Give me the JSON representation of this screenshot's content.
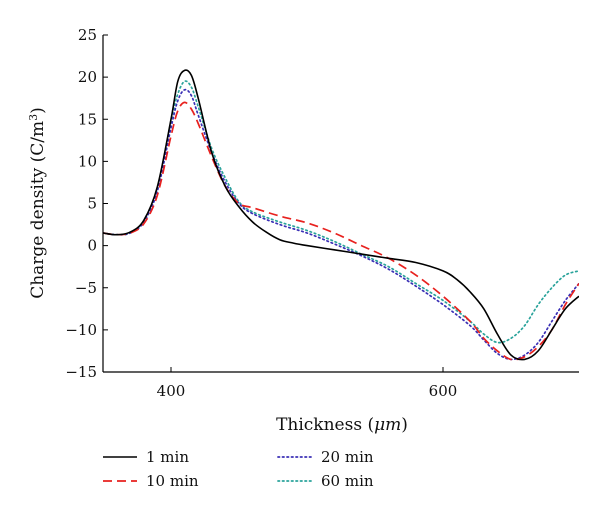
{
  "chart_data": {
    "type": "line",
    "xlabel": "Thickness (μm)",
    "xlabel_main": "Thickness (",
    "xlabel_unit": "μm",
    "xlabel_close": ")",
    "ylabel": "Charge density (C/m³)",
    "ylabel_main": "Charge density (C/m",
    "ylabel_sup": "3",
    "ylabel_close": ")",
    "xlim": [
      350,
      700
    ],
    "ylim": [
      -15,
      25
    ],
    "xticks": [
      400,
      600
    ],
    "yticks": [
      -15,
      -10,
      -5,
      0,
      5,
      10,
      15,
      20,
      25
    ],
    "grid": false,
    "legend_position": "bottom",
    "series": [
      {
        "name": "1 min",
        "color": "#000000",
        "dash": "solid",
        "x": [
          350,
          360,
          370,
          380,
          390,
          400,
          405,
          410,
          415,
          420,
          430,
          440,
          450,
          460,
          470,
          480,
          490,
          500,
          520,
          540,
          560,
          580,
          600,
          610,
          620,
          630,
          640,
          650,
          660,
          670,
          680,
          690,
          700
        ],
        "y": [
          1.5,
          1.3,
          1.6,
          3.0,
          7.0,
          15.0,
          19.5,
          20.8,
          20.2,
          17.5,
          11.0,
          7.0,
          4.6,
          2.8,
          1.6,
          0.7,
          0.3,
          0.0,
          -0.5,
          -1.0,
          -1.5,
          -2.0,
          -3.0,
          -4.0,
          -5.5,
          -7.5,
          -10.5,
          -13.0,
          -13.5,
          -12.5,
          -10.0,
          -7.5,
          -6.0
        ]
      },
      {
        "name": "10 min",
        "color": "#e8211e",
        "dash": "dashed",
        "x": [
          350,
          360,
          370,
          380,
          390,
          400,
          405,
          410,
          415,
          420,
          430,
          440,
          450,
          460,
          480,
          500,
          520,
          540,
          560,
          580,
          600,
          620,
          630,
          640,
          650,
          660,
          670,
          680,
          690,
          700
        ],
        "y": [
          1.5,
          1.3,
          1.5,
          2.6,
          6.0,
          13.0,
          16.0,
          17.0,
          16.2,
          14.5,
          10.5,
          7.0,
          5.0,
          4.5,
          3.5,
          2.7,
          1.5,
          0.0,
          -1.5,
          -3.5,
          -6.0,
          -9.0,
          -11.0,
          -12.5,
          -13.5,
          -13.2,
          -12.0,
          -10.0,
          -7.0,
          -4.5
        ]
      },
      {
        "name": "20 min",
        "color": "#3a2fb5",
        "dash": "dotted",
        "x": [
          350,
          360,
          370,
          380,
          390,
          400,
          405,
          410,
          415,
          420,
          430,
          440,
          450,
          460,
          480,
          500,
          520,
          540,
          560,
          580,
          600,
          620,
          630,
          640,
          650,
          660,
          670,
          680,
          690,
          700
        ],
        "y": [
          1.5,
          1.3,
          1.5,
          2.8,
          6.5,
          14.0,
          17.2,
          18.5,
          17.8,
          15.5,
          11.0,
          7.5,
          5.0,
          3.8,
          2.5,
          1.5,
          0.2,
          -1.2,
          -2.8,
          -4.8,
          -7.0,
          -9.5,
          -11.2,
          -12.8,
          -13.5,
          -13.0,
          -11.5,
          -9.0,
          -6.5,
          -4.5
        ]
      },
      {
        "name": "60 min",
        "color": "#2aa39b",
        "dash": "dotted",
        "x": [
          350,
          360,
          370,
          380,
          390,
          400,
          405,
          410,
          415,
          420,
          430,
          440,
          450,
          460,
          480,
          500,
          520,
          540,
          560,
          580,
          600,
          620,
          630,
          640,
          650,
          660,
          670,
          680,
          690,
          700
        ],
        "y": [
          1.5,
          1.3,
          1.5,
          2.9,
          6.8,
          14.8,
          18.0,
          19.5,
          18.8,
          16.5,
          11.5,
          8.0,
          5.2,
          4.0,
          2.8,
          1.8,
          0.5,
          -1.0,
          -2.5,
          -4.5,
          -6.5,
          -9.0,
          -10.5,
          -11.5,
          -11.0,
          -9.5,
          -7.0,
          -5.0,
          -3.5,
          -3.0
        ]
      }
    ]
  }
}
